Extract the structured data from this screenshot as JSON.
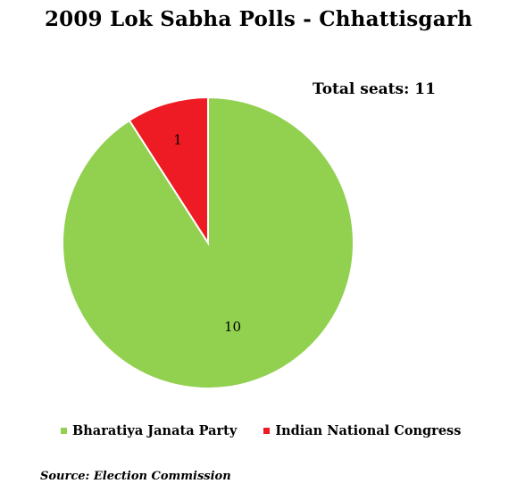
{
  "chart_data": {
    "type": "pie",
    "title": "2009 Lok Sabha Polls - Chhattisgarh",
    "annotation": "Total seats: 11",
    "slices": [
      {
        "label": "Bharatiya Janata Party",
        "value": 10,
        "color": "#92D050"
      },
      {
        "label": "Indian National Congress",
        "value": 1,
        "color": "#EE1B24"
      }
    ],
    "legend_position": "bottom"
  },
  "source": "Source: Election Commission"
}
